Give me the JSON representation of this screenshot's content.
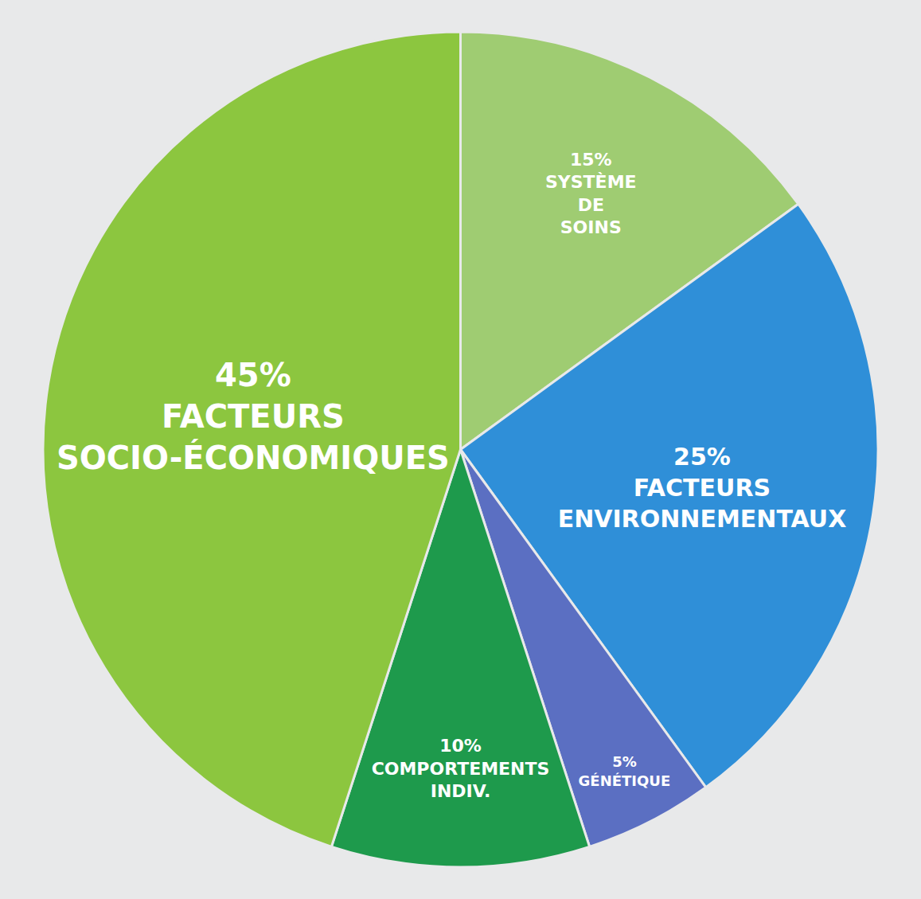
{
  "chart_data": {
    "type": "pie",
    "categories": [
      "SYSTÈME DE SOINS",
      "FACTEURS ENVIRONNEMENTAUX",
      "GÉNÉTIQUE",
      "COMPORTEMENTS INDIV.",
      "FACTEURS SOCIO-ÉCONOMIQUES"
    ],
    "values": [
      15,
      25,
      5,
      10,
      45
    ],
    "value_labels": [
      "15%",
      "25%",
      "5%",
      "10%",
      "45%"
    ],
    "colors": [
      "#9fcc72",
      "#2f8fd8",
      "#5b6fc2",
      "#1e9a4c",
      "#8cc63f"
    ],
    "data_labels": true
  }
}
